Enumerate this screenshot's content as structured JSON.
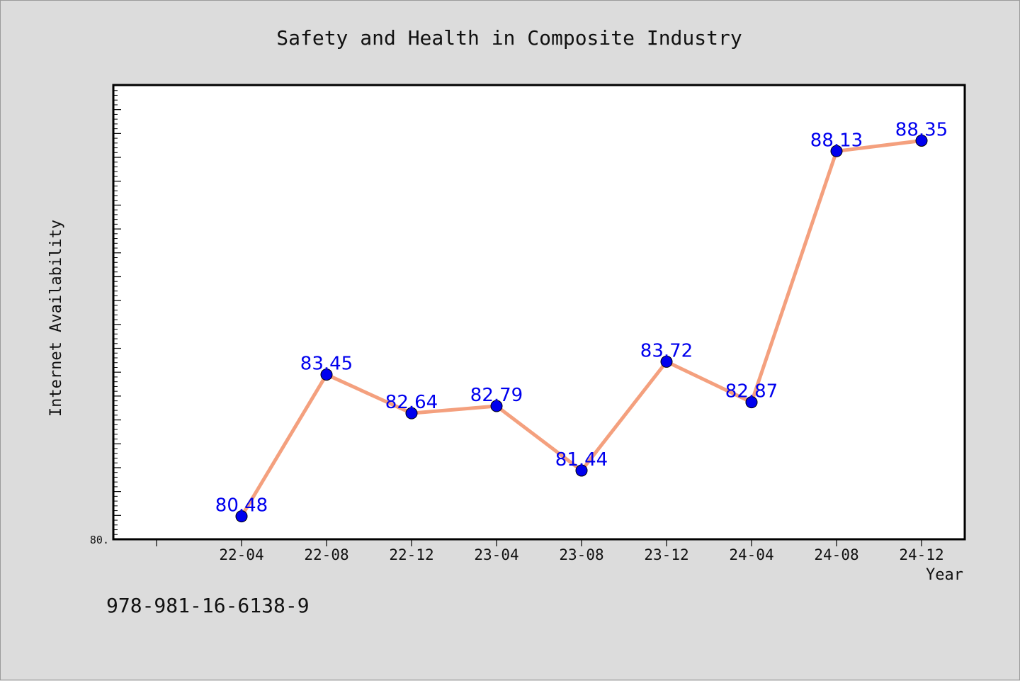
{
  "chart_data": {
    "type": "line",
    "title": "Safety and Health in Composite Industry",
    "xlabel": "Year",
    "ylabel": "Internet Availability",
    "categories": [
      "22-04",
      "22-08",
      "22-12",
      "23-04",
      "23-08",
      "23-12",
      "24-04",
      "24-08",
      "24-12"
    ],
    "series": [
      {
        "values": [
          80.48,
          83.45,
          82.64,
          82.79,
          81.44,
          83.72,
          82.87,
          88.13,
          88.35
        ],
        "color": "#f4a07e"
      }
    ],
    "marker_color": "#0000ee",
    "label_color": "#0000ee",
    "data_labels": [
      "80.48",
      "83.45",
      "82.64",
      "82.79",
      "81.44",
      "83.72",
      "82.87",
      "88.13",
      "88.35"
    ],
    "ytick_labels": [
      "80."
    ],
    "ylim": [
      80.0,
      89.5
    ],
    "grid": false,
    "legend": "none"
  },
  "annotation": {
    "text": "978-981-16-6138-9"
  }
}
